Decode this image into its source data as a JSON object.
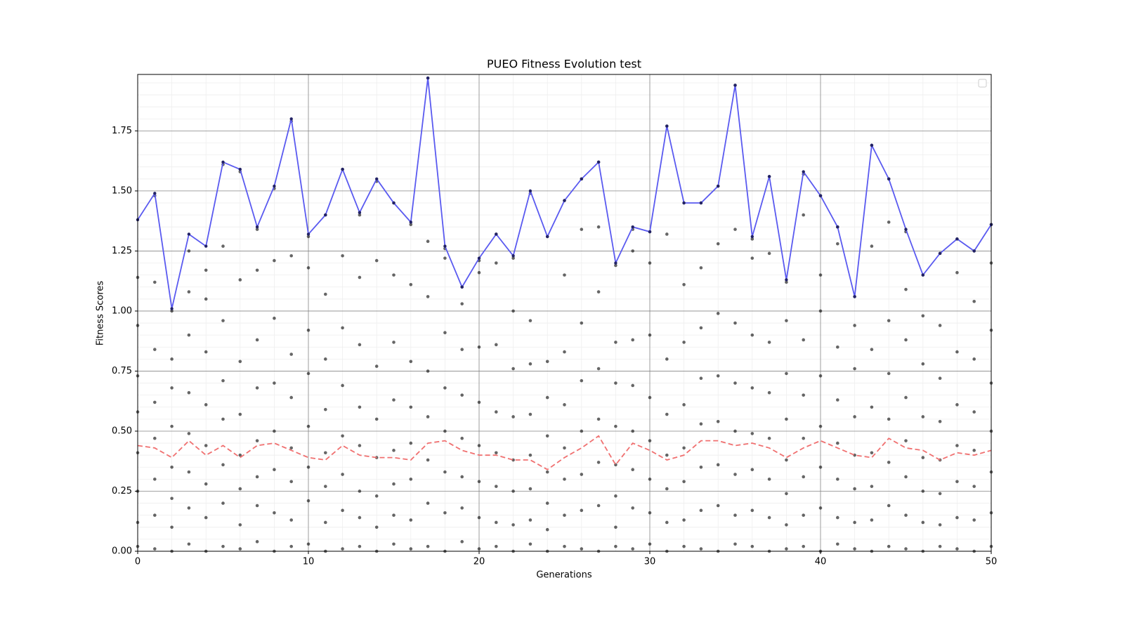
{
  "chart_data": {
    "type": "scatter",
    "title": "PUEO Fitness Evolution test",
    "xlabel": "Generations",
    "ylabel": "Fitness Scores",
    "xlim": [
      0,
      50
    ],
    "xticks": [
      0,
      10,
      20,
      30,
      40,
      50
    ],
    "ylim": [
      0,
      1.985
    ],
    "yticks": [
      {
        "value": 0,
        "label": "0.00"
      },
      {
        "value": 0.25,
        "label": "0.25"
      },
      {
        "value": 0.5,
        "label": "0.50"
      },
      {
        "value": 0.75,
        "label": "0.75"
      },
      {
        "value": 1,
        "label": "1.00"
      },
      {
        "value": 1.25,
        "label": "1.25"
      },
      {
        "value": 1.5,
        "label": "1.50"
      },
      {
        "value": 1.75,
        "label": "1.75"
      }
    ],
    "grid": true,
    "minor_grid": true,
    "legend": "upper right",
    "series": [
      {
        "color": "#000000",
        "style": "points",
        "x": [
          0,
          1,
          2,
          3,
          4,
          5,
          6,
          7,
          8,
          9,
          10,
          11,
          12,
          13,
          14,
          15,
          16,
          17,
          18,
          19,
          20,
          21,
          22,
          23,
          24,
          25,
          26,
          27,
          28,
          29,
          30,
          31,
          32,
          33,
          34,
          35,
          36,
          37,
          38,
          39,
          40,
          41,
          42,
          43,
          44,
          45,
          46,
          47,
          48,
          49,
          50
        ],
        "values": [
          [
            0.02,
            0.12,
            0.25,
            0.41,
            0.58,
            0.73,
            0.94,
            1.14
          ],
          [
            0.01,
            0.15,
            0.3,
            0.47,
            0.62,
            0.84,
            1.12,
            1.48
          ],
          [
            0.0,
            0.1,
            0.22,
            0.35,
            0.52,
            0.68,
            0.8,
            1.0
          ],
          [
            0.03,
            0.18,
            0.33,
            0.49,
            0.66,
            0.9,
            1.08,
            1.25
          ],
          [
            0.0,
            0.14,
            0.28,
            0.44,
            0.61,
            0.83,
            1.05,
            1.17
          ],
          [
            0.02,
            0.2,
            0.36,
            0.55,
            0.71,
            0.96,
            1.27,
            1.61
          ],
          [
            0.01,
            0.11,
            0.26,
            0.4,
            0.57,
            0.79,
            1.13,
            1.58
          ],
          [
            0.04,
            0.19,
            0.31,
            0.46,
            0.68,
            0.88,
            1.17,
            1.34
          ],
          [
            0.0,
            0.16,
            0.34,
            0.5,
            0.7,
            0.97,
            1.21,
            1.51
          ],
          [
            0.02,
            0.13,
            0.29,
            0.43,
            0.64,
            0.82,
            1.23,
            1.79
          ],
          [
            0.03,
            0.21,
            0.35,
            0.52,
            0.74,
            0.92,
            1.18,
            1.31
          ],
          [
            0.0,
            0.12,
            0.27,
            0.41,
            0.59,
            0.8,
            1.07,
            1.4
          ],
          [
            0.01,
            0.17,
            0.32,
            0.48,
            0.69,
            0.93,
            1.23,
            1.59
          ],
          [
            0.02,
            0.14,
            0.25,
            0.44,
            0.6,
            0.86,
            1.14,
            1.4
          ],
          [
            0.0,
            0.1,
            0.23,
            0.39,
            0.55,
            0.77,
            1.21,
            1.54
          ],
          [
            0.03,
            0.15,
            0.28,
            0.42,
            0.63,
            0.87,
            1.15,
            1.45
          ],
          [
            0.01,
            0.13,
            0.3,
            0.45,
            0.6,
            0.79,
            1.11,
            1.36
          ],
          [
            0.02,
            0.2,
            0.38,
            0.56,
            0.75,
            1.06,
            1.29,
            1.97
          ],
          [
            0.0,
            0.16,
            0.33,
            0.5,
            0.68,
            0.91,
            1.22,
            1.26
          ],
          [
            0.04,
            0.18,
            0.31,
            0.47,
            0.65,
            0.84,
            1.03,
            1.1
          ],
          [
            0.01,
            0.14,
            0.29,
            0.44,
            0.62,
            0.85,
            1.16,
            1.21
          ],
          [
            0.02,
            0.12,
            0.27,
            0.41,
            0.58,
            0.86,
            1.2,
            1.32
          ],
          [
            0.0,
            0.11,
            0.25,
            0.38,
            0.56,
            0.76,
            1.0,
            1.22
          ],
          [
            0.03,
            0.13,
            0.26,
            0.4,
            0.57,
            0.78,
            0.96,
            1.49
          ],
          [
            0.0,
            0.09,
            0.2,
            0.33,
            0.48,
            0.64,
            0.79,
            1.31
          ],
          [
            0.02,
            0.15,
            0.3,
            0.43,
            0.61,
            0.83,
            1.15,
            1.46
          ],
          [
            0.01,
            0.17,
            0.32,
            0.5,
            0.71,
            0.95,
            1.34,
            1.55
          ],
          [
            0.0,
            0.19,
            0.37,
            0.55,
            0.76,
            1.08,
            1.35,
            1.62
          ],
          [
            0.02,
            0.1,
            0.23,
            0.36,
            0.52,
            0.7,
            0.87,
            1.19
          ],
          [
            0.01,
            0.18,
            0.34,
            0.5,
            0.69,
            0.88,
            1.25,
            1.34
          ],
          [
            0.03,
            0.16,
            0.3,
            0.46,
            0.64,
            0.9,
            1.2,
            1.33
          ],
          [
            0.0,
            0.12,
            0.26,
            0.4,
            0.57,
            0.8,
            1.32,
            1.77
          ],
          [
            0.02,
            0.13,
            0.29,
            0.43,
            0.61,
            0.87,
            1.11,
            1.45
          ],
          [
            0.01,
            0.17,
            0.35,
            0.53,
            0.72,
            0.93,
            1.18,
            1.45
          ],
          [
            0.0,
            0.19,
            0.36,
            0.54,
            0.73,
            0.99,
            1.28,
            1.52
          ],
          [
            0.03,
            0.15,
            0.32,
            0.5,
            0.7,
            0.95,
            1.34,
            1.94
          ],
          [
            0.02,
            0.17,
            0.34,
            0.49,
            0.68,
            0.9,
            1.22,
            1.3
          ],
          [
            0.0,
            0.14,
            0.3,
            0.47,
            0.66,
            0.87,
            1.24,
            1.56
          ],
          [
            0.01,
            0.11,
            0.24,
            0.38,
            0.55,
            0.74,
            0.96,
            1.12
          ],
          [
            0.02,
            0.15,
            0.31,
            0.47,
            0.65,
            0.88,
            1.4,
            1.57
          ],
          [
            0.0,
            0.18,
            0.35,
            0.52,
            0.73,
            1.0,
            1.15,
            1.48
          ],
          [
            0.03,
            0.14,
            0.3,
            0.45,
            0.63,
            0.85,
            1.28,
            1.35
          ],
          [
            0.01,
            0.12,
            0.26,
            0.4,
            0.56,
            0.76,
            0.94,
            1.06
          ],
          [
            0.0,
            0.13,
            0.27,
            0.41,
            0.6,
            0.84,
            1.27,
            1.69
          ],
          [
            0.02,
            0.19,
            0.37,
            0.55,
            0.74,
            0.96,
            1.37,
            1.55
          ],
          [
            0.01,
            0.15,
            0.31,
            0.46,
            0.64,
            0.88,
            1.09,
            1.33
          ],
          [
            0.0,
            0.12,
            0.25,
            0.39,
            0.56,
            0.78,
            0.98,
            1.15
          ],
          [
            0.02,
            0.11,
            0.24,
            0.38,
            0.54,
            0.72,
            0.94,
            1.24
          ],
          [
            0.01,
            0.14,
            0.29,
            0.44,
            0.61,
            0.83,
            1.16,
            1.3
          ],
          [
            0.0,
            0.13,
            0.27,
            0.42,
            0.58,
            0.8,
            1.04,
            1.25
          ],
          [
            0.02,
            0.16,
            0.33,
            0.5,
            0.7,
            0.92,
            1.2,
            1.36
          ]
        ]
      },
      {
        "color": "#5a5af0",
        "style": "solid",
        "markers": true,
        "x": [
          0,
          1,
          2,
          3,
          4,
          5,
          6,
          7,
          8,
          9,
          10,
          11,
          12,
          13,
          14,
          15,
          16,
          17,
          18,
          19,
          20,
          21,
          22,
          23,
          24,
          25,
          26,
          27,
          28,
          29,
          30,
          31,
          32,
          33,
          34,
          35,
          36,
          37,
          38,
          39,
          40,
          41,
          42,
          43,
          44,
          45,
          46,
          47,
          48,
          49,
          50
        ],
        "values": [
          1.38,
          1.49,
          1.01,
          1.32,
          1.27,
          1.62,
          1.59,
          1.35,
          1.52,
          1.8,
          1.32,
          1.4,
          1.59,
          1.41,
          1.55,
          1.45,
          1.37,
          1.97,
          1.27,
          1.1,
          1.22,
          1.32,
          1.23,
          1.5,
          1.31,
          1.46,
          1.55,
          1.62,
          1.2,
          1.35,
          1.33,
          1.77,
          1.45,
          1.45,
          1.52,
          1.94,
          1.31,
          1.56,
          1.13,
          1.58,
          1.48,
          1.35,
          1.06,
          1.69,
          1.55,
          1.34,
          1.15,
          1.24,
          1.3,
          1.25,
          1.36
        ]
      },
      {
        "color": "#f07070",
        "style": "dashed",
        "x": [
          0,
          1,
          2,
          3,
          4,
          5,
          6,
          7,
          8,
          9,
          10,
          11,
          12,
          13,
          14,
          15,
          16,
          17,
          18,
          19,
          20,
          21,
          22,
          23,
          24,
          25,
          26,
          27,
          28,
          29,
          30,
          31,
          32,
          33,
          34,
          35,
          36,
          37,
          38,
          39,
          40,
          41,
          42,
          43,
          44,
          45,
          46,
          47,
          48,
          49,
          50
        ],
        "values": [
          0.44,
          0.43,
          0.39,
          0.46,
          0.4,
          0.44,
          0.39,
          0.44,
          0.45,
          0.42,
          0.39,
          0.38,
          0.44,
          0.4,
          0.39,
          0.39,
          0.38,
          0.45,
          0.46,
          0.42,
          0.4,
          0.4,
          0.38,
          0.38,
          0.34,
          0.39,
          0.43,
          0.48,
          0.36,
          0.45,
          0.42,
          0.38,
          0.4,
          0.46,
          0.46,
          0.44,
          0.45,
          0.43,
          0.39,
          0.43,
          0.46,
          0.43,
          0.4,
          0.39,
          0.47,
          0.43,
          0.42,
          0.38,
          0.41,
          0.4,
          0.42
        ]
      }
    ]
  }
}
